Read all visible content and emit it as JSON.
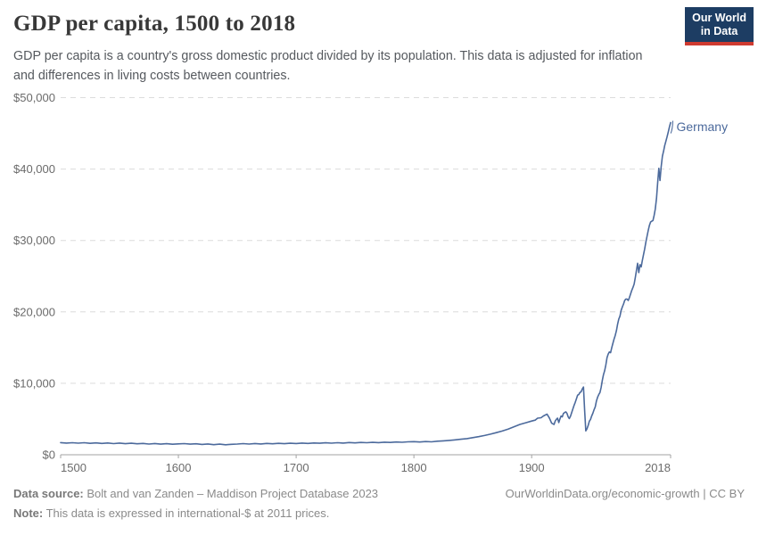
{
  "header": {
    "title": "GDP per capita, 1500 to 2018",
    "subtitle_lines": [
      "GDP per capita is a country's gross domestic product divided by its population. This data is adjusted for inflation",
      "and differences in living costs between countries."
    ],
    "logo": {
      "line1": "Our World",
      "line2": "in Data",
      "bg_color": "#1d3d63",
      "accent_color": "#cf3a30"
    }
  },
  "footer": {
    "source_label": "Data source:",
    "source_text": "Bolt and van Zanden – Maddison Project Database 2023",
    "note_label": "Note:",
    "note_text": "This data is expressed in international-$ at 2011 prices.",
    "citation": "OurWorldinData.org/economic-growth",
    "divider": "|",
    "license": "CC BY"
  },
  "chart_data": {
    "type": "line",
    "title": "GDP per capita, 1500 to 2018",
    "xlabel": "",
    "ylabel": "",
    "xlim": [
      1500,
      2018
    ],
    "ylim": [
      0,
      50000
    ],
    "grid": "dashed-horizontal",
    "legend_position": "end-of-line-label",
    "style": {
      "grid_color": "#dcdcdc",
      "axis_color": "#a3a3a3",
      "tick_label_color": "#6b6b6b"
    },
    "x_ticks": [
      {
        "value": 1500,
        "label": "1500",
        "align": "start"
      },
      {
        "value": 1600,
        "label": "1600",
        "align": "middle"
      },
      {
        "value": 1700,
        "label": "1700",
        "align": "middle"
      },
      {
        "value": 1800,
        "label": "1800",
        "align": "middle"
      },
      {
        "value": 1900,
        "label": "1900",
        "align": "middle"
      },
      {
        "value": 2018,
        "label": "2018",
        "align": "end"
      }
    ],
    "y_ticks": [
      {
        "value": 0,
        "label": "$0"
      },
      {
        "value": 10000,
        "label": "$10,000"
      },
      {
        "value": 20000,
        "label": "$20,000"
      },
      {
        "value": 30000,
        "label": "$30,000"
      },
      {
        "value": 40000,
        "label": "$40,000"
      },
      {
        "value": 50000,
        "label": "$50,000"
      }
    ],
    "series": [
      {
        "name": "Germany",
        "color": "#4c6a9c",
        "points": [
          [
            1500,
            1700
          ],
          [
            1505,
            1640
          ],
          [
            1510,
            1690
          ],
          [
            1515,
            1620
          ],
          [
            1520,
            1680
          ],
          [
            1525,
            1600
          ],
          [
            1530,
            1660
          ],
          [
            1535,
            1580
          ],
          [
            1540,
            1650
          ],
          [
            1545,
            1560
          ],
          [
            1550,
            1630
          ],
          [
            1555,
            1550
          ],
          [
            1560,
            1610
          ],
          [
            1565,
            1530
          ],
          [
            1570,
            1590
          ],
          [
            1575,
            1500
          ],
          [
            1580,
            1570
          ],
          [
            1585,
            1490
          ],
          [
            1590,
            1550
          ],
          [
            1595,
            1470
          ],
          [
            1600,
            1520
          ],
          [
            1605,
            1560
          ],
          [
            1610,
            1490
          ],
          [
            1615,
            1540
          ],
          [
            1620,
            1450
          ],
          [
            1625,
            1510
          ],
          [
            1630,
            1410
          ],
          [
            1635,
            1480
          ],
          [
            1640,
            1400
          ],
          [
            1645,
            1460
          ],
          [
            1650,
            1500
          ],
          [
            1655,
            1560
          ],
          [
            1660,
            1500
          ],
          [
            1665,
            1570
          ],
          [
            1670,
            1510
          ],
          [
            1675,
            1580
          ],
          [
            1680,
            1530
          ],
          [
            1685,
            1600
          ],
          [
            1690,
            1550
          ],
          [
            1695,
            1610
          ],
          [
            1700,
            1570
          ],
          [
            1705,
            1630
          ],
          [
            1710,
            1590
          ],
          [
            1715,
            1650
          ],
          [
            1720,
            1610
          ],
          [
            1725,
            1670
          ],
          [
            1730,
            1620
          ],
          [
            1735,
            1690
          ],
          [
            1740,
            1640
          ],
          [
            1745,
            1710
          ],
          [
            1750,
            1660
          ],
          [
            1755,
            1720
          ],
          [
            1760,
            1680
          ],
          [
            1765,
            1740
          ],
          [
            1770,
            1700
          ],
          [
            1775,
            1760
          ],
          [
            1780,
            1720
          ],
          [
            1785,
            1790
          ],
          [
            1790,
            1750
          ],
          [
            1795,
            1810
          ],
          [
            1800,
            1830
          ],
          [
            1805,
            1790
          ],
          [
            1810,
            1850
          ],
          [
            1815,
            1810
          ],
          [
            1820,
            1900
          ],
          [
            1825,
            1950
          ],
          [
            1830,
            2010
          ],
          [
            1835,
            2080
          ],
          [
            1840,
            2170
          ],
          [
            1845,
            2260
          ],
          [
            1850,
            2400
          ],
          [
            1855,
            2540
          ],
          [
            1860,
            2700
          ],
          [
            1865,
            2890
          ],
          [
            1870,
            3100
          ],
          [
            1875,
            3320
          ],
          [
            1880,
            3600
          ],
          [
            1885,
            3920
          ],
          [
            1890,
            4250
          ],
          [
            1895,
            4480
          ],
          [
            1900,
            4720
          ],
          [
            1903,
            4850
          ],
          [
            1905,
            5120
          ],
          [
            1908,
            5180
          ],
          [
            1910,
            5430
          ],
          [
            1913,
            5690
          ],
          [
            1915,
            5150
          ],
          [
            1917,
            4420
          ],
          [
            1919,
            4250
          ],
          [
            1920,
            4720
          ],
          [
            1921,
            4960
          ],
          [
            1922,
            5120
          ],
          [
            1923,
            4510
          ],
          [
            1924,
            5020
          ],
          [
            1925,
            5420
          ],
          [
            1926,
            5310
          ],
          [
            1927,
            5780
          ],
          [
            1928,
            5920
          ],
          [
            1929,
            6010
          ],
          [
            1930,
            5790
          ],
          [
            1931,
            5320
          ],
          [
            1932,
            5070
          ],
          [
            1933,
            5420
          ],
          [
            1934,
            5920
          ],
          [
            1935,
            6420
          ],
          [
            1936,
            6910
          ],
          [
            1937,
            7320
          ],
          [
            1938,
            7830
          ],
          [
            1939,
            8340
          ],
          [
            1940,
            8430
          ],
          [
            1941,
            8710
          ],
          [
            1942,
            8810
          ],
          [
            1943,
            9210
          ],
          [
            1944,
            9470
          ],
          [
            1945,
            6200
          ],
          [
            1946,
            3350
          ],
          [
            1947,
            3620
          ],
          [
            1948,
            4120
          ],
          [
            1949,
            4710
          ],
          [
            1950,
            4940
          ],
          [
            1951,
            5430
          ],
          [
            1952,
            5810
          ],
          [
            1953,
            6320
          ],
          [
            1954,
            6710
          ],
          [
            1955,
            7520
          ],
          [
            1956,
            8040
          ],
          [
            1957,
            8440
          ],
          [
            1958,
            8710
          ],
          [
            1959,
            9420
          ],
          [
            1960,
            10400
          ],
          [
            1961,
            11200
          ],
          [
            1962,
            11800
          ],
          [
            1963,
            12600
          ],
          [
            1964,
            13600
          ],
          [
            1965,
            14100
          ],
          [
            1966,
            14400
          ],
          [
            1967,
            14300
          ],
          [
            1968,
            15000
          ],
          [
            1969,
            15600
          ],
          [
            1970,
            16200
          ],
          [
            1971,
            16700
          ],
          [
            1972,
            17400
          ],
          [
            1973,
            18300
          ],
          [
            1974,
            19000
          ],
          [
            1975,
            19400
          ],
          [
            1976,
            20200
          ],
          [
            1977,
            20700
          ],
          [
            1978,
            21100
          ],
          [
            1979,
            21600
          ],
          [
            1980,
            21800
          ],
          [
            1981,
            21800
          ],
          [
            1982,
            21600
          ],
          [
            1983,
            22000
          ],
          [
            1984,
            22500
          ],
          [
            1985,
            23000
          ],
          [
            1986,
            23400
          ],
          [
            1987,
            23900
          ],
          [
            1988,
            24800
          ],
          [
            1989,
            25800
          ],
          [
            1990,
            26800
          ],
          [
            1991,
            25500
          ],
          [
            1992,
            26600
          ],
          [
            1993,
            26300
          ],
          [
            1994,
            27200
          ],
          [
            1995,
            28000
          ],
          [
            1996,
            28800
          ],
          [
            1997,
            29800
          ],
          [
            1998,
            30600
          ],
          [
            1999,
            31400
          ],
          [
            2000,
            32100
          ],
          [
            2001,
            32600
          ],
          [
            2002,
            32700
          ],
          [
            2003,
            32800
          ],
          [
            2004,
            33500
          ],
          [
            2005,
            34400
          ],
          [
            2006,
            35900
          ],
          [
            2007,
            38100
          ],
          [
            2008,
            40100
          ],
          [
            2009,
            38400
          ],
          [
            2010,
            40300
          ],
          [
            2011,
            41800
          ],
          [
            2012,
            42500
          ],
          [
            2013,
            43300
          ],
          [
            2014,
            43900
          ],
          [
            2015,
            44500
          ],
          [
            2016,
            45200
          ],
          [
            2017,
            45900
          ],
          [
            2018,
            46500
          ]
        ]
      }
    ]
  }
}
